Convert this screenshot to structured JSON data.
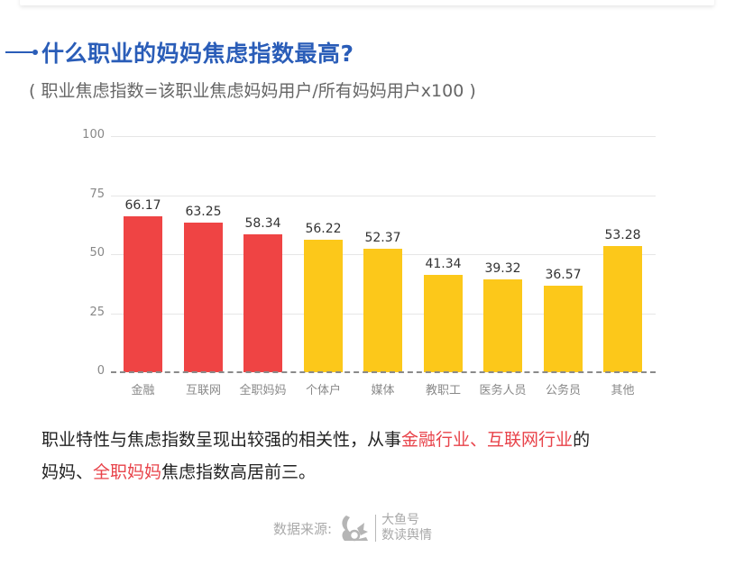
{
  "header": {
    "title": "什么职业的妈妈焦虑指数最高?",
    "subtitle": "( 职业焦虑指数=该职业焦虑妈妈用户/所有妈妈用户x100 )"
  },
  "colors": {
    "title_blue": "#2a5db8",
    "top3_red": "#ef4444",
    "others_yellow": "#fcc81a",
    "highlight_red": "#e8434a"
  },
  "chart_data": {
    "type": "bar",
    "title": "什么职业的妈妈焦虑指数最高?",
    "subtitle": "( 职业焦虑指数=该职业焦虑妈妈用户/所有妈妈用户x100 )",
    "xlabel": "",
    "ylabel": "",
    "categories": [
      "金融",
      "互联网",
      "全职妈妈",
      "个体户",
      "媒体",
      "教职工",
      "医务人员",
      "公务员",
      "其他"
    ],
    "values": [
      66.17,
      63.25,
      58.34,
      56.22,
      52.37,
      41.34,
      39.32,
      36.57,
      53.28
    ],
    "value_labels": [
      "66.17",
      "63.25",
      "58.34",
      "56.22",
      "52.37",
      "41.34",
      "39.32",
      "36.57",
      "53.28"
    ],
    "bar_colors": [
      "#ef4444",
      "#ef4444",
      "#ef4444",
      "#fcc81a",
      "#fcc81a",
      "#fcc81a",
      "#fcc81a",
      "#fcc81a",
      "#fcc81a"
    ],
    "ylim": [
      0,
      100
    ],
    "yticks": [
      "0",
      "25",
      "50",
      "75",
      "100"
    ],
    "grid": true,
    "legend": "none"
  },
  "conclusion": {
    "line1_prefix": "职业特性与焦虑指数呈现出较强的相关性，从事",
    "line1_hl1": "金融行业",
    "line1_sep": "、",
    "line1_hl2": "互联网行业",
    "line1_suffix": "的",
    "line2_prefix": "妈妈、",
    "line2_hl": "全职妈妈",
    "line2_suffix": "焦虑指数高居前三。"
  },
  "source": {
    "label": "数据来源:",
    "brand_line1": "大鱼号",
    "brand_line2": "数读舆情",
    "logo_icon": "squirrel-logo-icon"
  }
}
